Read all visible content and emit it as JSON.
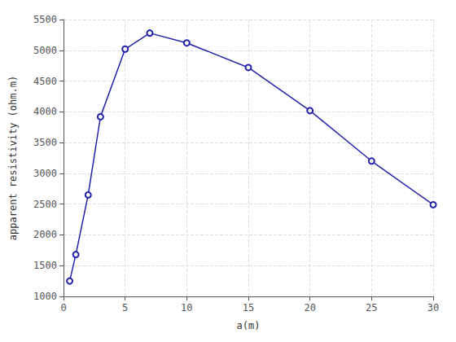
{
  "chart_data": {
    "type": "line",
    "x": [
      0.5,
      1,
      2,
      3,
      5,
      7,
      10,
      15,
      20,
      25,
      30
    ],
    "values": [
      1250,
      1680,
      2650,
      3920,
      5020,
      5280,
      5120,
      4720,
      4020,
      3200,
      2490
    ],
    "xlabel": "a(m)",
    "ylabel": "apparent resistivity (ohm.m)",
    "xlim": [
      0,
      30
    ],
    "ylim": [
      1000,
      5500
    ],
    "xticks": [
      0,
      5,
      10,
      15,
      20,
      25,
      30
    ],
    "yticks": [
      1000,
      1500,
      2000,
      2500,
      3000,
      3500,
      4000,
      4500,
      5000,
      5500
    ],
    "color": "#2222aa",
    "marker": "open_circle",
    "line_style": "solid",
    "grid": true
  }
}
